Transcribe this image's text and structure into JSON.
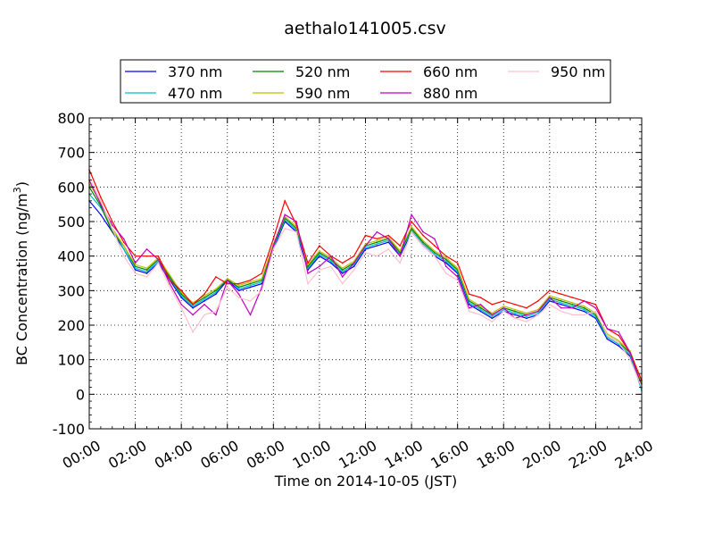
{
  "chart_data": {
    "type": "line",
    "title": "aethalo141005.csv",
    "xlabel": "Time on 2014-10-05 (JST)",
    "ylabel": "BC Concentration (ng/m",
    "ylabel_sup": "3",
    "ylabel_end": ")",
    "xlim": [
      "00:00",
      "24:00"
    ],
    "ylim": [
      -100,
      800
    ],
    "grid": true,
    "legend_position": "top-center",
    "x_ticks": [
      "00:00",
      "02:00",
      "04:00",
      "06:00",
      "08:00",
      "10:00",
      "12:00",
      "14:00",
      "16:00",
      "18:00",
      "20:00",
      "22:00",
      "24:00"
    ],
    "y_ticks": [
      "-100",
      "0",
      "100",
      "200",
      "300",
      "400",
      "500",
      "600",
      "700",
      "800"
    ],
    "x": [
      "00:00",
      "00:30",
      "01:00",
      "01:30",
      "02:00",
      "02:30",
      "03:00",
      "03:30",
      "04:00",
      "04:30",
      "05:00",
      "05:30",
      "06:00",
      "06:30",
      "07:00",
      "07:30",
      "08:00",
      "08:30",
      "09:00",
      "09:30",
      "10:00",
      "10:30",
      "11:00",
      "11:30",
      "12:00",
      "12:30",
      "13:00",
      "13:30",
      "14:00",
      "14:30",
      "15:00",
      "15:30",
      "16:00",
      "16:30",
      "17:00",
      "17:30",
      "18:00",
      "18:30",
      "19:00",
      "19:30",
      "20:00",
      "20:30",
      "21:00",
      "21:30",
      "22:00",
      "22:30",
      "23:00",
      "23:30",
      "24:00"
    ],
    "series": [
      {
        "name": "370 nm",
        "color": "#0000ff",
        "values": [
          560,
          520,
          470,
          420,
          360,
          350,
          380,
          330,
          280,
          250,
          270,
          290,
          330,
          300,
          310,
          320,
          420,
          500,
          470,
          360,
          400,
          380,
          350,
          370,
          420,
          430,
          440,
          400,
          470,
          430,
          400,
          380,
          350,
          260,
          240,
          220,
          240,
          230,
          220,
          230,
          270,
          260,
          250,
          240,
          220,
          160,
          140,
          110,
          20
        ]
      },
      {
        "name": "470 nm",
        "color": "#00bfbf",
        "values": [
          580,
          540,
          480,
          420,
          365,
          355,
          385,
          335,
          285,
          255,
          275,
          295,
          335,
          305,
          315,
          325,
          425,
          505,
          475,
          365,
          405,
          385,
          355,
          375,
          425,
          435,
          445,
          405,
          475,
          435,
          405,
          385,
          355,
          265,
          245,
          225,
          245,
          235,
          225,
          235,
          275,
          265,
          255,
          245,
          225,
          165,
          145,
          115,
          10
        ]
      },
      {
        "name": "520 nm",
        "color": "#008000",
        "values": [
          600,
          545,
          470,
          430,
          370,
          360,
          390,
          340,
          290,
          260,
          280,
          300,
          330,
          310,
          320,
          330,
          430,
          510,
          480,
          370,
          410,
          390,
          360,
          380,
          430,
          440,
          450,
          410,
          480,
          440,
          410,
          390,
          360,
          270,
          250,
          230,
          250,
          240,
          230,
          240,
          280,
          270,
          260,
          250,
          230,
          170,
          150,
          120,
          30
        ]
      },
      {
        "name": "590 nm",
        "color": "#bfbf00",
        "values": [
          610,
          555,
          480,
          430,
          375,
          365,
          395,
          345,
          295,
          265,
          285,
          305,
          335,
          315,
          325,
          335,
          435,
          515,
          485,
          375,
          415,
          395,
          365,
          385,
          435,
          445,
          455,
          415,
          485,
          445,
          415,
          395,
          365,
          275,
          255,
          235,
          255,
          245,
          235,
          245,
          285,
          275,
          265,
          255,
          235,
          175,
          155,
          125,
          35
        ]
      },
      {
        "name": "660 nm",
        "color": "#ff0000",
        "values": [
          650,
          570,
          500,
          440,
          400,
          400,
          400,
          330,
          300,
          260,
          290,
          340,
          320,
          320,
          330,
          350,
          450,
          560,
          490,
          380,
          430,
          400,
          380,
          400,
          460,
          450,
          460,
          430,
          500,
          460,
          430,
          400,
          380,
          290,
          280,
          260,
          270,
          260,
          250,
          270,
          300,
          290,
          280,
          270,
          260,
          190,
          170,
          120,
          40
        ]
      },
      {
        "name": "880 nm",
        "color": "#bf00bf",
        "values": [
          620,
          550,
          490,
          450,
          380,
          420,
          390,
          320,
          260,
          230,
          260,
          230,
          330,
          290,
          230,
          310,
          430,
          520,
          500,
          350,
          370,
          400,
          340,
          380,
          430,
          470,
          450,
          400,
          520,
          470,
          450,
          370,
          340,
          250,
          260,
          230,
          250,
          220,
          230,
          240,
          280,
          250,
          250,
          270,
          250,
          190,
          180,
          120,
          20
        ]
      },
      {
        "name": "950 nm",
        "color": "#ffc0cb",
        "values": [
          630,
          560,
          480,
          400,
          350,
          340,
          380,
          310,
          250,
          180,
          230,
          240,
          310,
          280,
          270,
          300,
          420,
          480,
          470,
          320,
          360,
          370,
          320,
          360,
          410,
          400,
          420,
          380,
          470,
          430,
          400,
          350,
          330,
          240,
          230,
          210,
          240,
          220,
          210,
          230,
          260,
          240,
          230,
          230,
          240,
          170,
          150,
          100,
          20
        ]
      }
    ]
  }
}
